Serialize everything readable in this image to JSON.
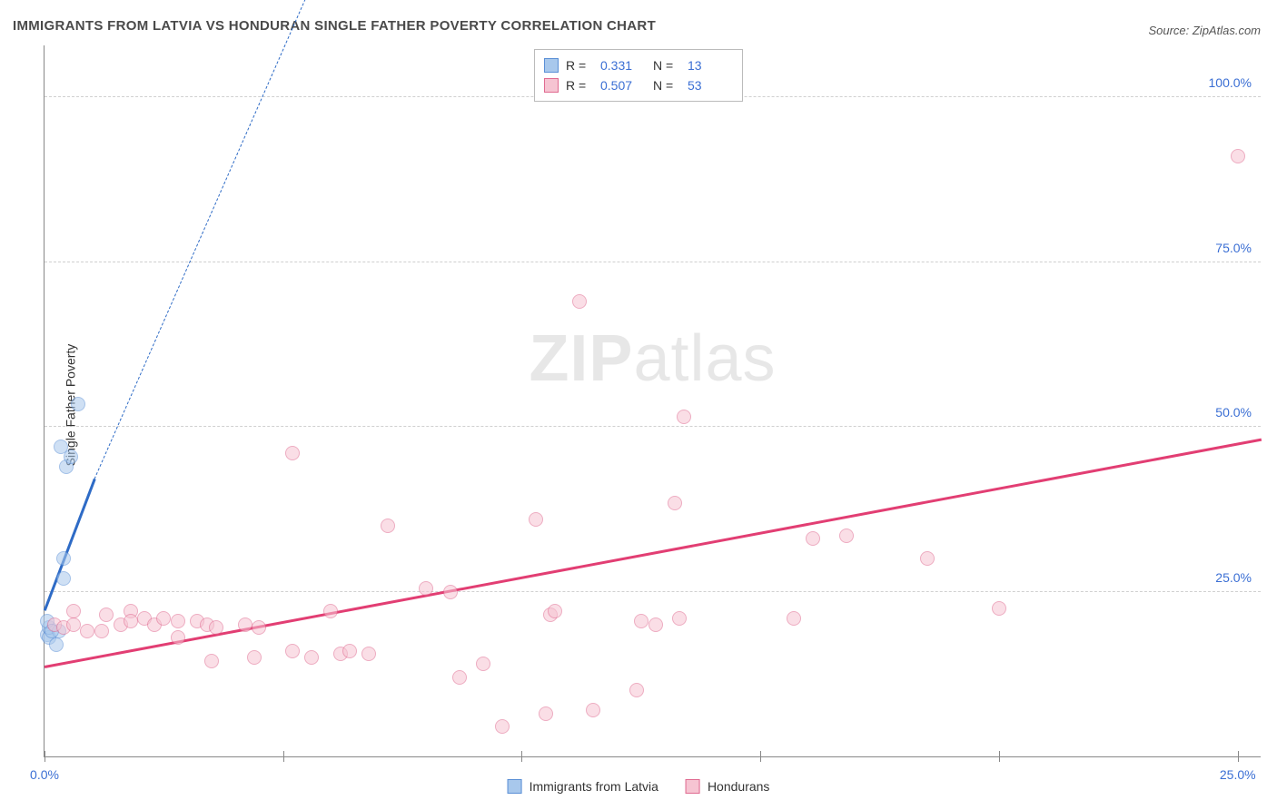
{
  "title": "IMMIGRANTS FROM LATVIA VS HONDURAN SINGLE FATHER POVERTY CORRELATION CHART",
  "source": "Source: ZipAtlas.com",
  "ylabel": "Single Father Poverty",
  "watermark": {
    "zip": "ZIP",
    "atlas": "atlas"
  },
  "chart": {
    "type": "scatter",
    "xlim": [
      0,
      25.5
    ],
    "ylim": [
      0,
      108
    ],
    "x_ticks": [
      0,
      5,
      10,
      15,
      20,
      25
    ],
    "x_tick_labels": [
      "0.0%",
      "",
      "",
      "",
      "",
      "25.0%"
    ],
    "y_ticks": [
      25,
      50,
      75,
      100
    ],
    "y_tick_labels": [
      "25.0%",
      "50.0%",
      "75.0%",
      "100.0%"
    ],
    "grid_color": "#d9d9d9",
    "background_color": "#ffffff",
    "label_color": "#3b6fd4",
    "label_fontsize": 14,
    "marker_radius": 8,
    "marker_opacity": 0.55
  },
  "series": [
    {
      "name": "Immigrants from Latvia",
      "color_fill": "#a8c8ec",
      "color_stroke": "#5a8fd6",
      "trend": {
        "x1": 0,
        "y1": 22,
        "x2": 1.05,
        "y2": 42,
        "color": "#2e6bc6",
        "width": 2.5,
        "dash_x2": 7.3,
        "dash_y2": 145
      },
      "R": "0.331",
      "N": "13",
      "points": [
        [
          0.05,
          18.5
        ],
        [
          0.1,
          18
        ],
        [
          0.1,
          19.5
        ],
        [
          0.3,
          19
        ],
        [
          0.25,
          17
        ],
        [
          0.4,
          27
        ],
        [
          0.4,
          30
        ],
        [
          0.45,
          44
        ],
        [
          0.55,
          45.5
        ],
        [
          0.35,
          47
        ],
        [
          0.7,
          53.5
        ],
        [
          0.05,
          20.5
        ],
        [
          0.15,
          19
        ]
      ]
    },
    {
      "name": "Hondurans",
      "color_fill": "#f6c4d2",
      "color_stroke": "#e06a90",
      "trend": {
        "x1": 0,
        "y1": 13.5,
        "x2": 25.5,
        "y2": 48,
        "color": "#e23e73",
        "width": 2.5
      },
      "R": "0.507",
      "N": "53",
      "points": [
        [
          0.2,
          20
        ],
        [
          0.4,
          19.5
        ],
        [
          0.6,
          20
        ],
        [
          0.6,
          22
        ],
        [
          0.9,
          19
        ],
        [
          1.2,
          19
        ],
        [
          1.3,
          21.5
        ],
        [
          1.6,
          20
        ],
        [
          1.8,
          22
        ],
        [
          1.8,
          20.5
        ],
        [
          2.1,
          21
        ],
        [
          2.3,
          20
        ],
        [
          2.5,
          21
        ],
        [
          2.8,
          20.5
        ],
        [
          2.8,
          18
        ],
        [
          3.2,
          20.5
        ],
        [
          3.4,
          20
        ],
        [
          3.6,
          19.5
        ],
        [
          3.5,
          14.5
        ],
        [
          4.2,
          20
        ],
        [
          4.4,
          15
        ],
        [
          4.5,
          19.5
        ],
        [
          5.2,
          16
        ],
        [
          5.2,
          46
        ],
        [
          5.6,
          15
        ],
        [
          6.0,
          22
        ],
        [
          6.2,
          15.5
        ],
        [
          6.4,
          16
        ],
        [
          6.8,
          15.5
        ],
        [
          7.2,
          35
        ],
        [
          8.0,
          25.5
        ],
        [
          8.5,
          25
        ],
        [
          8.7,
          12
        ],
        [
          9.2,
          14
        ],
        [
          9.6,
          4.5
        ],
        [
          10.3,
          36
        ],
        [
          10.5,
          6.5
        ],
        [
          10.6,
          21.5
        ],
        [
          10.7,
          22
        ],
        [
          11.2,
          69
        ],
        [
          11.5,
          7
        ],
        [
          12.4,
          10
        ],
        [
          12.5,
          20.5
        ],
        [
          12.8,
          20
        ],
        [
          13.2,
          38.5
        ],
        [
          13.3,
          21
        ],
        [
          13.4,
          51.5
        ],
        [
          15.7,
          21
        ],
        [
          16.1,
          33
        ],
        [
          16.8,
          33.5
        ],
        [
          18.5,
          30
        ],
        [
          20.0,
          22.5
        ],
        [
          25,
          91
        ]
      ]
    }
  ],
  "legend_bottom": [
    {
      "label": "Immigrants from Latvia",
      "fill": "#a8c8ec",
      "stroke": "#5a8fd6"
    },
    {
      "label": "Hondurans",
      "fill": "#f6c4d2",
      "stroke": "#e06a90"
    }
  ]
}
